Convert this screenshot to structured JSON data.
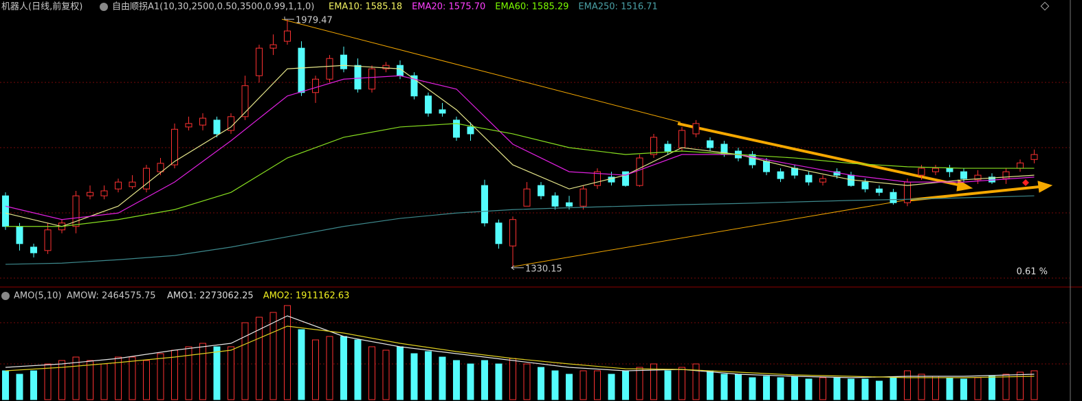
{
  "header": {
    "title": "机器人(日线,前复权)",
    "indicator": "自由顺拐A1(10,30,2500,0.50,3500,0.99,1,1,0)"
  },
  "chart_data": [
    {
      "type": "candlestick",
      "ylim": [
        1294,
        1994
      ],
      "up_color": "#ff3232",
      "down_color": "#54fcfc",
      "open": [
        1518,
        1438,
        1384,
        1375,
        1429,
        1438,
        1518,
        1518,
        1536,
        1542,
        1536,
        1581,
        1599,
        1698,
        1703,
        1716,
        1689,
        1725,
        1832,
        1904,
        1922,
        1904,
        1788,
        1823,
        1886,
        1859,
        1797,
        1850,
        1859,
        1832,
        1779,
        1743,
        1716,
        1698,
        1545,
        1447,
        1387,
        1491,
        1545,
        1518,
        1500,
        1491,
        1545,
        1567,
        1581,
        1545,
        1626,
        1653,
        1644,
        1680,
        1662,
        1653,
        1635,
        1626,
        1608,
        1581,
        1590,
        1572,
        1554,
        1581,
        1572,
        1554,
        1536,
        1527,
        1500,
        1572,
        1581,
        1590,
        1581,
        1560,
        1567,
        1563,
        1590,
        1613
      ],
      "high": [
        1527,
        1447,
        1393,
        1447,
        1456,
        1531,
        1545,
        1545,
        1563,
        1572,
        1599,
        1617,
        1707,
        1725,
        1734,
        1725,
        1734,
        1832,
        1913,
        1940,
        1979.47,
        1922,
        1832,
        1886,
        1908,
        1877,
        1859,
        1868,
        1872,
        1841,
        1788,
        1761,
        1725,
        1710,
        1560,
        1456,
        1464,
        1554,
        1554,
        1527,
        1518,
        1545,
        1590,
        1581,
        1581,
        1626,
        1680,
        1662,
        1698,
        1716,
        1671,
        1662,
        1644,
        1635,
        1617,
        1590,
        1599,
        1581,
        1572,
        1590,
        1581,
        1563,
        1545,
        1536,
        1563,
        1599,
        1599,
        1599,
        1590,
        1585,
        1577,
        1590,
        1613,
        1639
      ],
      "low": [
        1429,
        1375,
        1357,
        1366,
        1420,
        1420,
        1509,
        1509,
        1527,
        1536,
        1527,
        1572,
        1590,
        1689,
        1689,
        1671,
        1680,
        1716,
        1814,
        1886,
        1913,
        1779,
        1761,
        1814,
        1841,
        1788,
        1788,
        1841,
        1823,
        1770,
        1725,
        1725,
        1662,
        1662,
        1438,
        1380,
        1330.15,
        1491,
        1509,
        1482,
        1482,
        1482,
        1536,
        1545,
        1542,
        1542,
        1617,
        1626,
        1635,
        1671,
        1635,
        1620,
        1608,
        1590,
        1572,
        1554,
        1563,
        1545,
        1545,
        1563,
        1542,
        1527,
        1518,
        1495,
        1491,
        1560,
        1572,
        1567,
        1554,
        1549,
        1549,
        1549,
        1581,
        1603
      ],
      "close": [
        1438,
        1393,
        1369,
        1429,
        1447,
        1518,
        1527,
        1531,
        1554,
        1554,
        1590,
        1603,
        1692,
        1707,
        1721,
        1680,
        1725,
        1806,
        1904,
        1913,
        1949,
        1788,
        1823,
        1877,
        1850,
        1797,
        1850,
        1859,
        1832,
        1779,
        1734,
        1734,
        1671,
        1680,
        1447,
        1393,
        1456,
        1536,
        1518,
        1491,
        1491,
        1536,
        1581,
        1554,
        1545,
        1617,
        1671,
        1635,
        1689,
        1707,
        1644,
        1626,
        1617,
        1599,
        1581,
        1563,
        1572,
        1554,
        1563,
        1572,
        1545,
        1536,
        1527,
        1500,
        1554,
        1590,
        1590,
        1581,
        1563,
        1572,
        1554,
        1581,
        1604,
        1626
      ],
      "series": [
        {
          "label": "EMA10: 1585.18",
          "color": "#f0f060",
          "line_color": "#e6e68a",
          "x": [
            0,
            4,
            8,
            12,
            16,
            20,
            24,
            28,
            32,
            36,
            40,
            44,
            48,
            52,
            56,
            60,
            64,
            68,
            73
          ],
          "values": [
            1473,
            1438,
            1491,
            1608,
            1698,
            1850,
            1859,
            1850,
            1743,
            1599,
            1536,
            1572,
            1644,
            1626,
            1590,
            1560,
            1545,
            1560,
            1572
          ]
        },
        {
          "label": "EMA20: 1575.70",
          "color": "#ff40ff",
          "line_color": "#e020e0",
          "x": [
            0,
            4,
            8,
            12,
            16,
            20,
            24,
            28,
            32,
            36,
            40,
            44,
            48,
            52,
            56,
            60,
            64,
            68,
            73
          ],
          "values": [
            1491,
            1456,
            1473,
            1554,
            1662,
            1779,
            1823,
            1832,
            1797,
            1653,
            1581,
            1572,
            1626,
            1626,
            1599,
            1572,
            1554,
            1554,
            1567
          ]
        },
        {
          "label": "EMA60: 1585.29",
          "color": "#7cfc00",
          "line_color": "#88e020",
          "x": [
            0,
            4,
            8,
            12,
            16,
            20,
            24,
            28,
            32,
            36,
            40,
            44,
            48,
            52,
            56,
            60,
            64,
            68,
            73
          ],
          "values": [
            1438,
            1438,
            1456,
            1482,
            1527,
            1617,
            1671,
            1698,
            1707,
            1680,
            1644,
            1626,
            1635,
            1626,
            1617,
            1603,
            1594,
            1590,
            1590
          ]
        },
        {
          "label": "EMA250: 1516.71",
          "color": "#4aa0a6",
          "line_color": "#3e8a8e",
          "x": [
            0,
            4,
            8,
            12,
            16,
            20,
            24,
            28,
            32,
            36,
            40,
            44,
            48,
            52,
            56,
            60,
            64,
            68,
            73
          ],
          "values": [
            1339,
            1342,
            1351,
            1362,
            1384,
            1411,
            1438,
            1459,
            1473,
            1482,
            1487,
            1491,
            1495,
            1498,
            1502,
            1506,
            1509,
            1513,
            1518
          ]
        }
      ],
      "high_label": 1979.47,
      "high_index": 20,
      "low_label": 1330.15,
      "low_index": 36,
      "change_label": "0.61 %"
    },
    {
      "type": "bar",
      "title": "AMO(5,10)",
      "bar_label": "AMOW: 2464575.75",
      "ylim": [
        0,
        8512000
      ],
      "values": [
        2352000,
        2072000,
        2352000,
        2912000,
        3192000,
        3472000,
        3192000,
        2912000,
        3472000,
        3472000,
        3192000,
        3752000,
        4032000,
        4312000,
        4592000,
        4312000,
        4312000,
        6272000,
        6720000,
        7112000,
        7672000,
        5712000,
        4872000,
        5152000,
        5152000,
        4872000,
        4312000,
        4032000,
        4312000,
        3752000,
        3920000,
        3472000,
        3192000,
        2912000,
        3192000,
        2912000,
        3360000,
        2912000,
        2632000,
        2352000,
        2072000,
        2352000,
        2352000,
        2072000,
        2352000,
        2632000,
        2912000,
        2352000,
        2632000,
        2912000,
        2352000,
        2072000,
        2072000,
        1792000,
        1904000,
        1792000,
        1904000,
        1680000,
        1792000,
        1792000,
        1680000,
        1680000,
        1512000,
        1792000,
        2352000,
        2072000,
        1904000,
        1792000,
        1680000,
        1792000,
        1904000,
        2072000,
        2240000,
        2352000
      ],
      "series": [
        {
          "label": "AMO1: 2273062.25",
          "color": "#dddddd",
          "line_color": "#e8e8e8",
          "x": [
            0,
            4,
            8,
            12,
            16,
            20,
            24,
            28,
            32,
            36,
            40,
            44,
            48,
            52,
            56,
            60,
            64,
            68,
            73
          ],
          "values": [
            2632000,
            2912000,
            3360000,
            4032000,
            4592000,
            6832000,
            5152000,
            4312000,
            3752000,
            3192000,
            2632000,
            2352000,
            2464000,
            2072000,
            1904000,
            1792000,
            1904000,
            1904000,
            2072000
          ]
        },
        {
          "label": "AMO2: 1911162.63",
          "color": "#f0f020",
          "line_color": "#e0d020",
          "x": [
            0,
            4,
            8,
            12,
            16,
            20,
            24,
            28,
            32,
            36,
            40,
            44,
            48,
            52,
            56,
            60,
            64,
            68,
            73
          ],
          "values": [
            2352000,
            2632000,
            3024000,
            3472000,
            4032000,
            5992000,
            5432000,
            4592000,
            3920000,
            3360000,
            2912000,
            2520000,
            2464000,
            2240000,
            2016000,
            1904000,
            1792000,
            1792000,
            1904000
          ]
        }
      ]
    }
  ]
}
